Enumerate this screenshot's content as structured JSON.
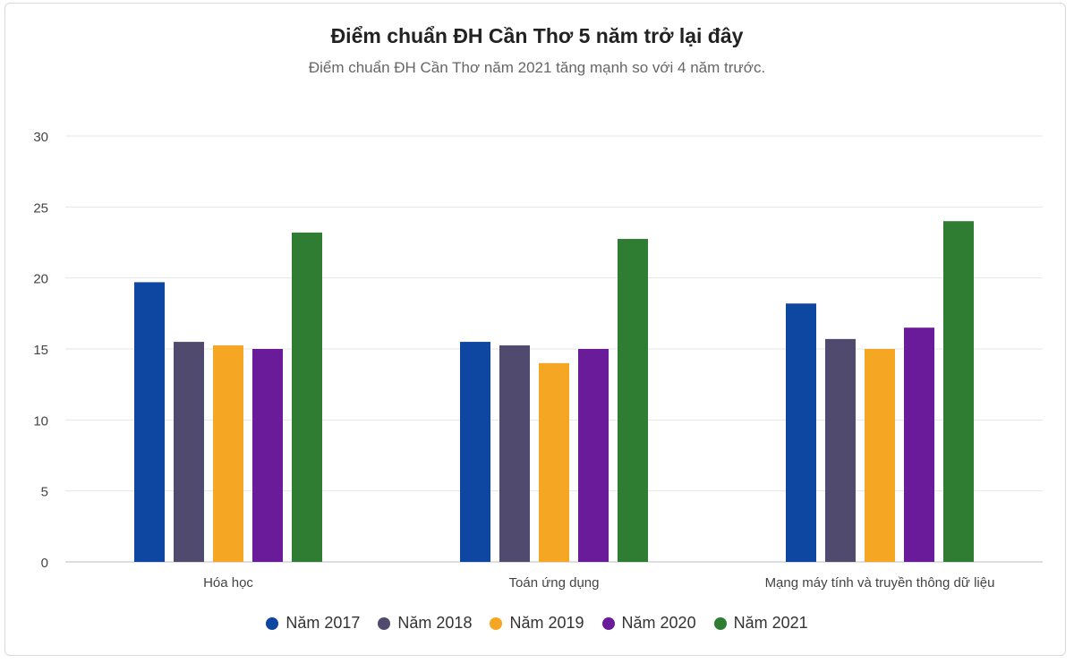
{
  "chart_data": {
    "type": "bar",
    "title": "Điểm chuẩn ĐH Cần Thơ 5 năm trở lại đây",
    "subtitle": "Điểm chuẩn ĐH Cần Thơ năm 2021 tăng mạnh so với 4 năm trước.",
    "categories": [
      "Hóa học",
      "Toán ứng dụng",
      "Mạng máy tính và truyền thông dữ liệu"
    ],
    "ylim": [
      0,
      30
    ],
    "yticks": [
      "0",
      "5",
      "10",
      "15",
      "20",
      "25",
      "30"
    ],
    "grid": true,
    "legend_position": "bottom",
    "series": [
      {
        "name": "Năm 2017",
        "color": "#0d47a1",
        "values": [
          19.7,
          15.5,
          18.2
        ]
      },
      {
        "name": "Năm 2018",
        "color": "#514a6f",
        "values": [
          15.5,
          15.25,
          15.7
        ]
      },
      {
        "name": "Năm 2019",
        "color": "#f5a623",
        "values": [
          15.25,
          14.0,
          15.0
        ]
      },
      {
        "name": "Năm 2020",
        "color": "#6a1b9a",
        "values": [
          15.0,
          15.0,
          16.5
        ]
      },
      {
        "name": "Năm 2021",
        "color": "#2e7d32",
        "values": [
          23.2,
          22.75,
          24.0
        ]
      }
    ]
  }
}
